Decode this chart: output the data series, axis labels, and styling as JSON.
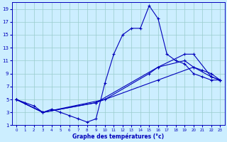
{
  "xlabel": "Graphe des températures (°c)",
  "bg_color": "#cceeff",
  "line_color": "#0000bb",
  "grid_color": "#99cccc",
  "xlim": [
    -0.5,
    23.5
  ],
  "ylim": [
    1,
    20
  ],
  "xticks": [
    0,
    1,
    2,
    3,
    4,
    5,
    6,
    7,
    8,
    9,
    10,
    11,
    12,
    13,
    14,
    15,
    16,
    17,
    18,
    19,
    20,
    21,
    22,
    23
  ],
  "yticks": [
    1,
    3,
    5,
    7,
    9,
    11,
    13,
    15,
    17,
    19
  ],
  "lines": [
    {
      "x": [
        0,
        1,
        2,
        3,
        4,
        5,
        6,
        7,
        8,
        9,
        10,
        11,
        12,
        13,
        14,
        15,
        16,
        17,
        18,
        19,
        20,
        21,
        22,
        23
      ],
      "y": [
        5,
        4.5,
        4,
        3,
        3.5,
        3,
        2.5,
        2,
        1.5,
        2,
        7.5,
        12,
        15,
        16,
        16,
        19.5,
        17.5,
        12,
        11,
        10.5,
        9,
        8.5,
        8,
        8
      ]
    },
    {
      "x": [
        0,
        3,
        10,
        15,
        16,
        19,
        20,
        22,
        23
      ],
      "y": [
        5,
        3,
        5,
        9,
        10,
        12,
        12,
        8.5,
        8
      ]
    },
    {
      "x": [
        0,
        3,
        9,
        16,
        19,
        20,
        21,
        22,
        23
      ],
      "y": [
        5,
        3,
        4.5,
        10,
        11,
        10,
        9.5,
        9,
        8
      ]
    },
    {
      "x": [
        0,
        3,
        9,
        16,
        20,
        22,
        23
      ],
      "y": [
        5,
        3,
        4.5,
        8,
        10,
        8.5,
        8
      ]
    }
  ]
}
